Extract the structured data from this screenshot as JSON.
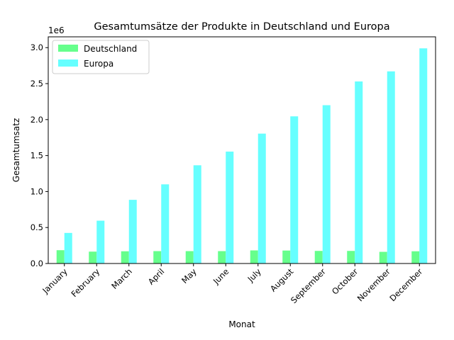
{
  "chart_data": {
    "type": "bar",
    "title": "Gesamtumsätze der Produkte in Deutschland und Europa",
    "xlabel": "Monat",
    "ylabel": "Gesamtumsatz",
    "y_offset_label": "1e6",
    "ylim": [
      0,
      3150000
    ],
    "yticks": [
      0,
      500000,
      1000000,
      1500000,
      2000000,
      2500000,
      3000000
    ],
    "ytick_labels": [
      "0.0",
      "0.5",
      "1.0",
      "1.5",
      "2.0",
      "2.5",
      "3.0"
    ],
    "grid": false,
    "legend_position": "top-left",
    "categories": [
      "January",
      "February",
      "March",
      "April",
      "May",
      "June",
      "July",
      "August",
      "September",
      "October",
      "November",
      "December"
    ],
    "series": [
      {
        "name": "Deutschland",
        "color": "#66ff8c",
        "values": [
          185000,
          165000,
          170000,
          172000,
          172000,
          172000,
          182000,
          180000,
          175000,
          175000,
          162000,
          170000
        ]
      },
      {
        "name": "Europa",
        "color": "#66ffff",
        "values": [
          425000,
          595000,
          885000,
          1100000,
          1365000,
          1555000,
          1805000,
          2045000,
          2200000,
          2530000,
          2670000,
          2990000
        ]
      }
    ]
  }
}
